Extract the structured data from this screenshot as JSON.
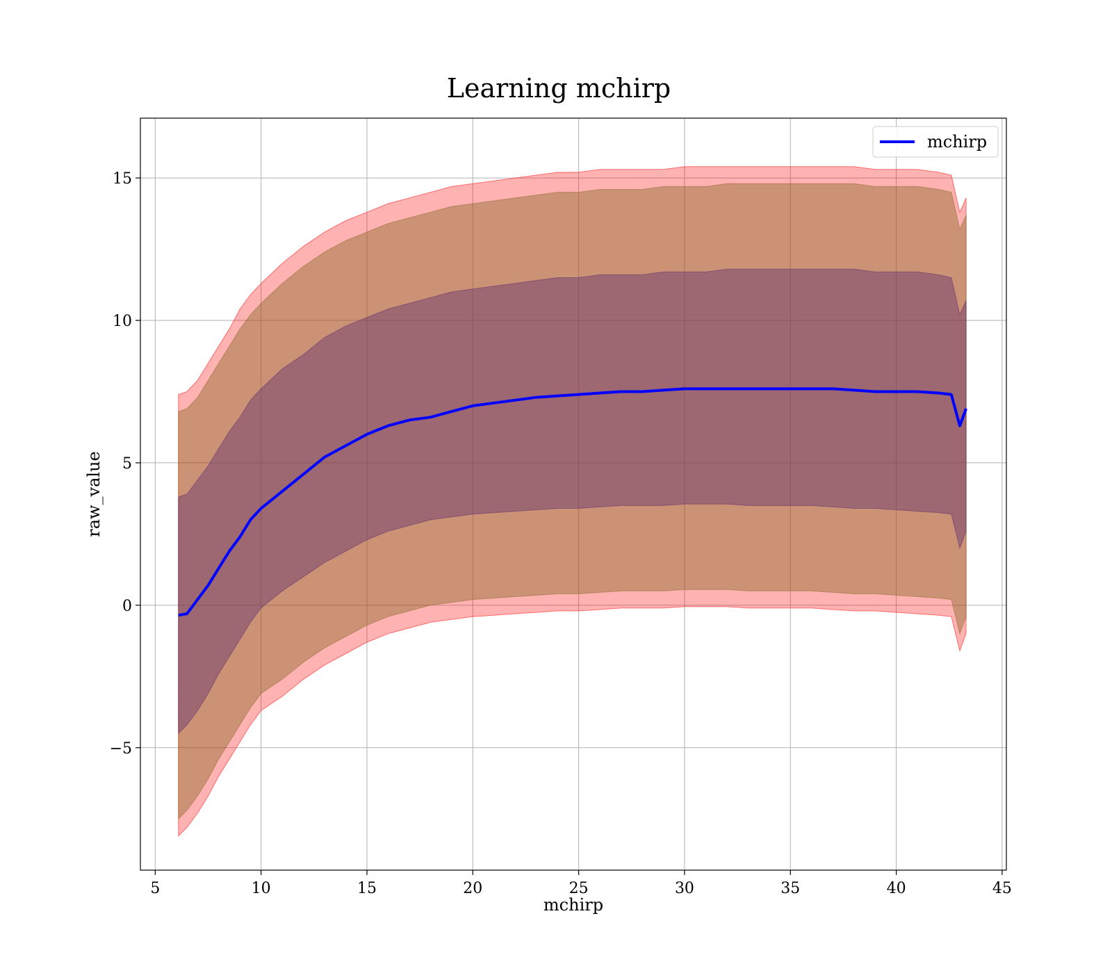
{
  "chart_data": {
    "type": "line",
    "title": "Learning mchirp",
    "xlabel": "mchirp",
    "ylabel": "raw_value",
    "xlim": [
      4.3,
      45.2
    ],
    "ylim": [
      -9.3,
      17.1
    ],
    "xticks": [
      5,
      10,
      15,
      20,
      25,
      30,
      35,
      40,
      45
    ],
    "xtick_labels": [
      "5",
      "10",
      "15",
      "20",
      "25",
      "30",
      "35",
      "40",
      "45"
    ],
    "yticks": [
      -5,
      0,
      5,
      10,
      15
    ],
    "ytick_labels": [
      "−5",
      "0",
      "5",
      "10",
      "15"
    ],
    "grid": true,
    "legend": {
      "placement": "top-right",
      "entries": [
        {
          "label": "mchirp",
          "color": "#0000ff"
        }
      ]
    },
    "series": [
      {
        "name": "mchirp",
        "color": "#0000ff",
        "x": [
          6.1,
          6.5,
          7.0,
          7.5,
          8.0,
          8.5,
          9.0,
          9.5,
          10.0,
          11.0,
          12.0,
          13.0,
          14.0,
          15.0,
          16.0,
          17.0,
          18.0,
          19.0,
          20.0,
          21.0,
          22.0,
          23.0,
          24.0,
          25.0,
          26.0,
          27.0,
          28.0,
          29.0,
          30.0,
          31.0,
          32.0,
          33.0,
          34.0,
          35.0,
          36.0,
          37.0,
          38.0,
          39.0,
          40.0,
          41.0,
          42.0,
          42.6,
          43.0,
          43.3
        ],
        "y": [
          -0.35,
          -0.3,
          0.2,
          0.7,
          1.3,
          1.9,
          2.4,
          3.0,
          3.4,
          4.0,
          4.6,
          5.2,
          5.6,
          6.0,
          6.3,
          6.5,
          6.6,
          6.8,
          7.0,
          7.1,
          7.2,
          7.3,
          7.35,
          7.4,
          7.45,
          7.5,
          7.5,
          7.55,
          7.6,
          7.6,
          7.6,
          7.6,
          7.6,
          7.6,
          7.6,
          7.6,
          7.55,
          7.5,
          7.5,
          7.5,
          7.45,
          7.4,
          6.3,
          6.9
        ]
      }
    ],
    "bands": [
      {
        "color": "#ff0000",
        "opacity": 0.3,
        "x": [
          6.1,
          6.5,
          7.0,
          7.5,
          8.0,
          8.5,
          9.0,
          9.5,
          10.0,
          11.0,
          12.0,
          13.0,
          14.0,
          15.0,
          16.0,
          17.0,
          18.0,
          19.0,
          20.0,
          21.0,
          22.0,
          23.0,
          24.0,
          25.0,
          26.0,
          27.0,
          28.0,
          29.0,
          30.0,
          31.0,
          32.0,
          33.0,
          34.0,
          35.0,
          36.0,
          37.0,
          38.0,
          39.0,
          40.0,
          41.0,
          42.0,
          42.6,
          43.0,
          43.3
        ],
        "upper": [
          7.4,
          7.5,
          7.9,
          8.5,
          9.1,
          9.7,
          10.4,
          10.9,
          11.3,
          12.0,
          12.6,
          13.1,
          13.5,
          13.8,
          14.1,
          14.3,
          14.5,
          14.7,
          14.8,
          14.9,
          15.0,
          15.1,
          15.2,
          15.2,
          15.3,
          15.3,
          15.3,
          15.3,
          15.4,
          15.4,
          15.4,
          15.4,
          15.4,
          15.4,
          15.4,
          15.4,
          15.4,
          15.3,
          15.3,
          15.3,
          15.2,
          15.1,
          13.8,
          14.3
        ],
        "lower": [
          -8.1,
          -7.8,
          -7.3,
          -6.7,
          -6.0,
          -5.4,
          -4.8,
          -4.2,
          -3.7,
          -3.2,
          -2.6,
          -2.1,
          -1.7,
          -1.3,
          -1.0,
          -0.8,
          -0.6,
          -0.5,
          -0.4,
          -0.35,
          -0.3,
          -0.25,
          -0.2,
          -0.2,
          -0.15,
          -0.1,
          -0.1,
          -0.1,
          -0.05,
          -0.05,
          -0.05,
          -0.1,
          -0.1,
          -0.1,
          -0.1,
          -0.15,
          -0.2,
          -0.2,
          -0.25,
          -0.3,
          -0.35,
          -0.4,
          -1.6,
          -1.0
        ]
      },
      {
        "color": "#8b6b2a",
        "opacity": 0.45,
        "x": [
          6.1,
          6.5,
          7.0,
          7.5,
          8.0,
          8.5,
          9.0,
          9.5,
          10.0,
          11.0,
          12.0,
          13.0,
          14.0,
          15.0,
          16.0,
          17.0,
          18.0,
          19.0,
          20.0,
          21.0,
          22.0,
          23.0,
          24.0,
          25.0,
          26.0,
          27.0,
          28.0,
          29.0,
          30.0,
          31.0,
          32.0,
          33.0,
          34.0,
          35.0,
          36.0,
          37.0,
          38.0,
          39.0,
          40.0,
          41.0,
          42.0,
          42.6,
          43.0,
          43.3
        ],
        "upper": [
          6.8,
          6.9,
          7.3,
          7.9,
          8.5,
          9.1,
          9.7,
          10.2,
          10.6,
          11.3,
          11.9,
          12.4,
          12.8,
          13.1,
          13.4,
          13.6,
          13.8,
          14.0,
          14.1,
          14.2,
          14.3,
          14.4,
          14.5,
          14.5,
          14.6,
          14.6,
          14.6,
          14.7,
          14.7,
          14.7,
          14.8,
          14.8,
          14.8,
          14.8,
          14.8,
          14.8,
          14.8,
          14.7,
          14.7,
          14.7,
          14.6,
          14.5,
          13.2,
          13.7
        ],
        "lower": [
          -7.5,
          -7.2,
          -6.7,
          -6.1,
          -5.4,
          -4.8,
          -4.2,
          -3.6,
          -3.1,
          -2.6,
          -2.0,
          -1.5,
          -1.1,
          -0.7,
          -0.4,
          -0.2,
          0.0,
          0.1,
          0.2,
          0.25,
          0.3,
          0.35,
          0.4,
          0.4,
          0.45,
          0.5,
          0.5,
          0.5,
          0.55,
          0.55,
          0.55,
          0.5,
          0.5,
          0.5,
          0.5,
          0.45,
          0.4,
          0.4,
          0.35,
          0.3,
          0.25,
          0.2,
          -1.0,
          -0.4
        ]
      },
      {
        "color": "#5a2a6e",
        "opacity": 0.4,
        "x": [
          6.1,
          6.5,
          7.0,
          7.5,
          8.0,
          8.5,
          9.0,
          9.5,
          10.0,
          11.0,
          12.0,
          13.0,
          14.0,
          15.0,
          16.0,
          17.0,
          18.0,
          19.0,
          20.0,
          21.0,
          22.0,
          23.0,
          24.0,
          25.0,
          26.0,
          27.0,
          28.0,
          29.0,
          30.0,
          31.0,
          32.0,
          33.0,
          34.0,
          35.0,
          36.0,
          37.0,
          38.0,
          39.0,
          40.0,
          41.0,
          42.0,
          42.6,
          43.0,
          43.3
        ],
        "upper": [
          3.8,
          3.9,
          4.4,
          4.9,
          5.5,
          6.1,
          6.6,
          7.2,
          7.6,
          8.3,
          8.8,
          9.4,
          9.8,
          10.1,
          10.4,
          10.6,
          10.8,
          11.0,
          11.1,
          11.2,
          11.3,
          11.4,
          11.5,
          11.5,
          11.6,
          11.6,
          11.6,
          11.7,
          11.7,
          11.7,
          11.8,
          11.8,
          11.8,
          11.8,
          11.8,
          11.8,
          11.8,
          11.7,
          11.7,
          11.7,
          11.6,
          11.5,
          10.2,
          10.7
        ],
        "lower": [
          -4.5,
          -4.2,
          -3.7,
          -3.1,
          -2.4,
          -1.8,
          -1.2,
          -0.6,
          -0.1,
          0.5,
          1.0,
          1.5,
          1.9,
          2.3,
          2.6,
          2.8,
          3.0,
          3.1,
          3.2,
          3.25,
          3.3,
          3.35,
          3.4,
          3.4,
          3.45,
          3.5,
          3.5,
          3.5,
          3.55,
          3.55,
          3.55,
          3.5,
          3.5,
          3.5,
          3.5,
          3.45,
          3.4,
          3.4,
          3.35,
          3.3,
          3.25,
          3.2,
          2.0,
          2.6
        ]
      }
    ]
  }
}
